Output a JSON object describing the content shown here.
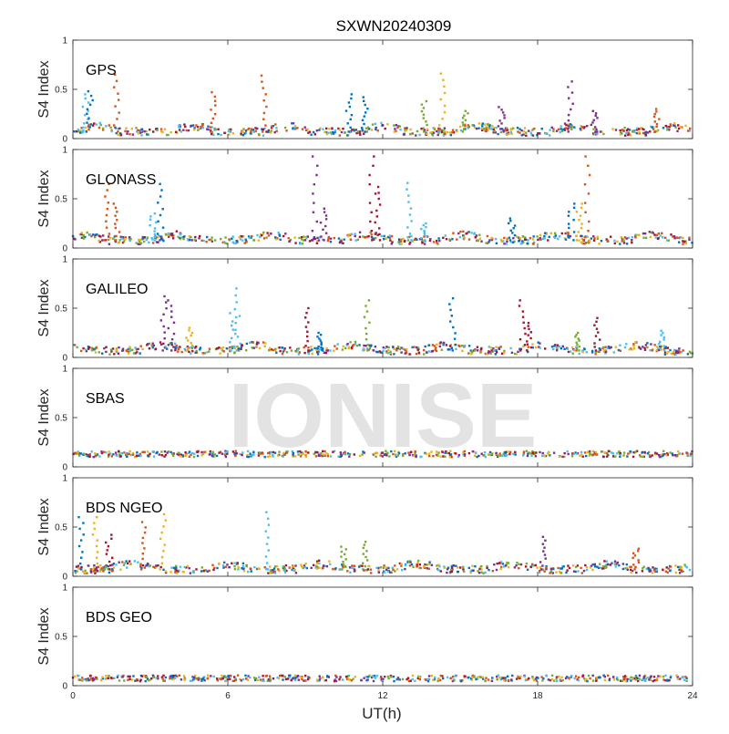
{
  "chart_data": {
    "type": "scatter",
    "title": "SXWN20240309",
    "xlabel": "UT(h)",
    "ylabel": "S4 Index",
    "xlim": [
      0,
      24
    ],
    "ylim": [
      0,
      1
    ],
    "xticks": [
      0,
      6,
      12,
      18,
      24
    ],
    "yticks": [
      0,
      0.5,
      1
    ],
    "grid": false,
    "watermark": "IONISE",
    "colors": [
      "#0072BD",
      "#D95319",
      "#EDB120",
      "#7E2F8E",
      "#77AC30",
      "#4DBEEE",
      "#A2142F"
    ],
    "panels": [
      {
        "name": "GPS",
        "baseline": 0.07,
        "spikes": [
          {
            "x": 0.5,
            "y": 0.45,
            "color": 5
          },
          {
            "x": 0.65,
            "y": 0.48,
            "color": 0
          },
          {
            "x": 1.7,
            "y": 0.65,
            "color": 1
          },
          {
            "x": 5.4,
            "y": 0.47,
            "color": 1
          },
          {
            "x": 7.4,
            "y": 0.64,
            "color": 1
          },
          {
            "x": 10.7,
            "y": 0.45,
            "color": 0
          },
          {
            "x": 11.3,
            "y": 0.42,
            "color": 0
          },
          {
            "x": 13.6,
            "y": 0.38,
            "color": 4
          },
          {
            "x": 14.3,
            "y": 0.66,
            "color": 2
          },
          {
            "x": 15.2,
            "y": 0.28,
            "color": 4
          },
          {
            "x": 16.6,
            "y": 0.32,
            "color": 3
          },
          {
            "x": 19.3,
            "y": 0.58,
            "color": 3
          },
          {
            "x": 20.2,
            "y": 0.28,
            "color": 3
          },
          {
            "x": 22.6,
            "y": 0.3,
            "color": 1
          }
        ]
      },
      {
        "name": "GLONASS",
        "baseline": 0.08,
        "spikes": [
          {
            "x": 1.3,
            "y": 0.65,
            "color": 1
          },
          {
            "x": 1.7,
            "y": 0.45,
            "color": 1
          },
          {
            "x": 3.4,
            "y": 0.65,
            "color": 0
          },
          {
            "x": 3.1,
            "y": 0.35,
            "color": 5
          },
          {
            "x": 9.4,
            "y": 0.93,
            "color": 3
          },
          {
            "x": 9.7,
            "y": 0.4,
            "color": 3
          },
          {
            "x": 11.6,
            "y": 0.93,
            "color": 6
          },
          {
            "x": 11.8,
            "y": 0.62,
            "color": 6
          },
          {
            "x": 13.0,
            "y": 0.66,
            "color": 5
          },
          {
            "x": 13.6,
            "y": 0.25,
            "color": 5
          },
          {
            "x": 17.0,
            "y": 0.3,
            "color": 0
          },
          {
            "x": 19.3,
            "y": 0.45,
            "color": 0
          },
          {
            "x": 19.9,
            "y": 0.93,
            "color": 1
          },
          {
            "x": 19.6,
            "y": 0.45,
            "color": 2
          }
        ]
      },
      {
        "name": "GALILEO",
        "baseline": 0.07,
        "spikes": [
          {
            "x": 3.5,
            "y": 0.62,
            "color": 3
          },
          {
            "x": 3.8,
            "y": 0.58,
            "color": 3
          },
          {
            "x": 4.5,
            "y": 0.3,
            "color": 2
          },
          {
            "x": 6.4,
            "y": 0.7,
            "color": 5
          },
          {
            "x": 6.2,
            "y": 0.45,
            "color": 5
          },
          {
            "x": 9.0,
            "y": 0.5,
            "color": 6
          },
          {
            "x": 9.6,
            "y": 0.25,
            "color": 0
          },
          {
            "x": 11.4,
            "y": 0.58,
            "color": 4
          },
          {
            "x": 14.7,
            "y": 0.6,
            "color": 0
          },
          {
            "x": 17.4,
            "y": 0.58,
            "color": 6
          },
          {
            "x": 17.7,
            "y": 0.35,
            "color": 6
          },
          {
            "x": 19.5,
            "y": 0.25,
            "color": 4
          },
          {
            "x": 20.3,
            "y": 0.4,
            "color": 6
          },
          {
            "x": 22.8,
            "y": 0.27,
            "color": 5
          }
        ]
      },
      {
        "name": "SBAS",
        "baseline": 0.13,
        "spikes": []
      },
      {
        "name": "BDS NGEO",
        "baseline": 0.07,
        "spikes": [
          {
            "x": 0.3,
            "y": 0.6,
            "color": 0
          },
          {
            "x": 0.9,
            "y": 0.6,
            "color": 2
          },
          {
            "x": 1.4,
            "y": 0.42,
            "color": 6
          },
          {
            "x": 2.7,
            "y": 0.55,
            "color": 1
          },
          {
            "x": 3.5,
            "y": 0.63,
            "color": 2
          },
          {
            "x": 7.6,
            "y": 0.65,
            "color": 5
          },
          {
            "x": 10.5,
            "y": 0.3,
            "color": 4
          },
          {
            "x": 11.3,
            "y": 0.35,
            "color": 4
          },
          {
            "x": 18.2,
            "y": 0.4,
            "color": 3
          },
          {
            "x": 21.8,
            "y": 0.28,
            "color": 1
          }
        ]
      },
      {
        "name": "BDS GEO",
        "baseline": 0.075,
        "spikes": []
      }
    ]
  }
}
